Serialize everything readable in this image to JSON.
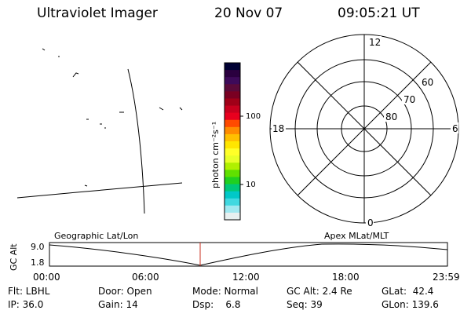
{
  "header": {
    "instrument": "Ultraviolet Imager",
    "date": "20 Nov 07",
    "time": "09:05:21 UT"
  },
  "colorbar": {
    "unit_label": "photon cm⁻²s⁻¹",
    "ticks": [
      {
        "label": "100",
        "value": 100
      },
      {
        "label": "10",
        "value": 10
      }
    ],
    "colors": [
      "#000033",
      "#2a003f",
      "#3d0a5a",
      "#5a0a3a",
      "#7a0022",
      "#a00018",
      "#c8001e",
      "#e8001e",
      "#ff4a00",
      "#ff8c00",
      "#ffc000",
      "#ffe600",
      "#ffff28",
      "#e8ff28",
      "#b0f000",
      "#60e000",
      "#20d020",
      "#00c878",
      "#00c8c8",
      "#40d8e0",
      "#a0e8f0",
      "#e8f0f0"
    ]
  },
  "polar_plot": {
    "mlt_labels": {
      "top": "12",
      "left": "18",
      "right": "6",
      "bottom": "0"
    },
    "lat_labels": [
      "60",
      "70",
      "80"
    ]
  },
  "timeline": {
    "left_label": "Geographic Lat/Lon",
    "right_label": "Apex MLat/MLT",
    "axis_title": "GC Alt",
    "y_labels": [
      "9.0",
      "1.8"
    ],
    "x_labels": [
      "00:00",
      "06:00",
      "12:00",
      "18:00",
      "23:59"
    ],
    "marker_color": "#c83020",
    "marker_time": "09:05"
  },
  "info": {
    "filter": "Flt: LBHL",
    "door": "Door: Open",
    "mode": "Mode: Normal",
    "gc_alt": "GC Alt: 2.4 Re",
    "glat": "GLat:  42.4",
    "ip": "IP: 36.0",
    "gain": "Gain: 14",
    "dsp": "Dsp:    6.8",
    "seq": "Seq: 39",
    "glon": "GLon: 139.6"
  }
}
